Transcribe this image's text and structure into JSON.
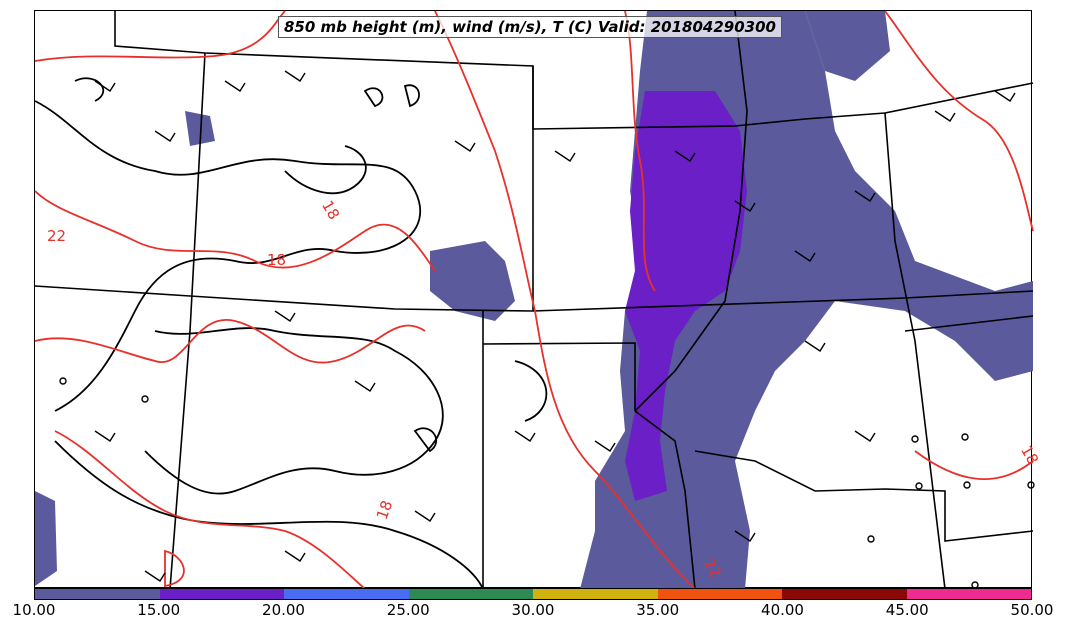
{
  "title": "850 mb height (m), wind (m/s), T (C) Valid: 201804290300",
  "contour_labels": [
    "22",
    "18",
    "18",
    "18",
    "18",
    "22"
  ],
  "colorbar": {
    "ticks": [
      "10.00",
      "15.00",
      "20.00",
      "25.00",
      "30.00",
      "35.00",
      "40.00",
      "45.00",
      "50.00"
    ],
    "colors": [
      "#5a5a9c",
      "#6b1fc6",
      "#4a6cf3",
      "#2e8a52",
      "#cfb20e",
      "#f0520f",
      "#8a0808",
      "#ee2c90"
    ]
  },
  "colors": {
    "temperature_contour": "#e8302a",
    "height_contour": "#000000",
    "boundaries": "#000000"
  },
  "wind_barbs_icon": "wind-barb-icon",
  "calm_wind_icon": "calm-circle-icon"
}
